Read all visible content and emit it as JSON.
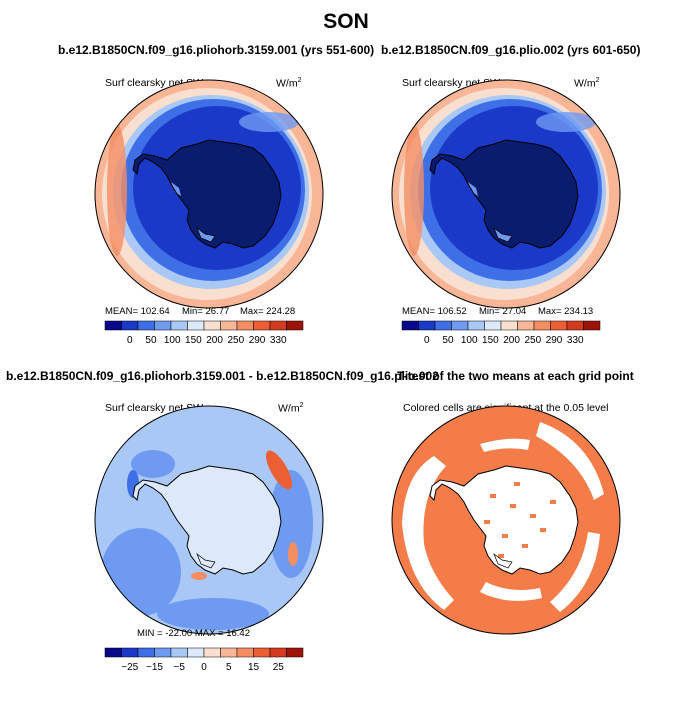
{
  "figure": {
    "title": "SON"
  },
  "panels": [
    {
      "title": "b.e12.B1850CN.f09_g16.pliohorb.3159.001 (yrs 551-600)",
      "variable": "Surf clearsky net SW",
      "units": "W/m",
      "units_sup": "2",
      "stats": {
        "mean": "MEAN= 102.64",
        "min": "Min=   26.77",
        "max": "Max= 224.28"
      }
    },
    {
      "title": "b.e12.B1850CN.f09_g16.plio.002 (yrs 601-650)",
      "variable": "Surf clearsky net SW",
      "units": "W/m",
      "units_sup": "2",
      "stats": {
        "mean": "MEAN= 106.52",
        "min": "Min=   27.04",
        "max": "Max= 234.13"
      }
    },
    {
      "title": "b.e12.B1850CN.f09_g16.pliohorb.3159.001 - b.e12.B1850CN.f09_g16.plio.002",
      "variable": "Surf clearsky net SW",
      "units": "W/m",
      "units_sup": "2",
      "stats_line": "MIN = -22.00  MAX =  16.42"
    },
    {
      "title": "T-test of the two means at each grid point",
      "note": "Colored cells are significant at the 0.05 level"
    }
  ],
  "chart_data": [
    {
      "type": "heatmap",
      "projection": "south-polar-stereographic",
      "variable": "Surf clearsky net SW",
      "units": "W/m2",
      "mean": 102.64,
      "min": 26.77,
      "max": 224.28,
      "colorbar": {
        "levels": [
          0,
          50,
          100,
          150,
          200,
          250,
          290,
          330
        ],
        "colors": [
          "#08088a",
          "#1a39c8",
          "#3f6fe6",
          "#6f9af2",
          "#a9c8f5",
          "#dbe9fb",
          "#f8dfd0",
          "#f9b697",
          "#f58d63",
          "#ec5f35",
          "#d43a1e",
          "#9c1408"
        ]
      }
    },
    {
      "type": "heatmap",
      "projection": "south-polar-stereographic",
      "variable": "Surf clearsky net SW",
      "units": "W/m2",
      "mean": 106.52,
      "min": 27.04,
      "max": 234.13,
      "colorbar": {
        "levels": [
          0,
          50,
          100,
          150,
          200,
          250,
          290,
          330
        ],
        "colors": [
          "#08088a",
          "#1a39c8",
          "#3f6fe6",
          "#6f9af2",
          "#a9c8f5",
          "#dbe9fb",
          "#f8dfd0",
          "#f9b697",
          "#f58d63",
          "#ec5f35",
          "#d43a1e",
          "#9c1408"
        ]
      }
    },
    {
      "type": "heatmap",
      "projection": "south-polar-stereographic",
      "variable": "Surf clearsky net SW (difference)",
      "units": "W/m2",
      "min": -22.0,
      "max": 16.42,
      "colorbar": {
        "levels": [
          -25,
          -15,
          -5,
          0,
          5,
          15,
          25
        ],
        "colors": [
          "#08088a",
          "#1a39c8",
          "#3f6fe6",
          "#6f9af2",
          "#a9c8f5",
          "#dbe9fb",
          "#f8dfd0",
          "#f9b697",
          "#f58d63",
          "#ec5f35",
          "#d43a1e",
          "#9c1408"
        ]
      }
    },
    {
      "type": "heatmap",
      "projection": "south-polar-stereographic",
      "variable": "T-test significance",
      "significance_level": 0.05,
      "significant_color": "#f47c48"
    }
  ]
}
